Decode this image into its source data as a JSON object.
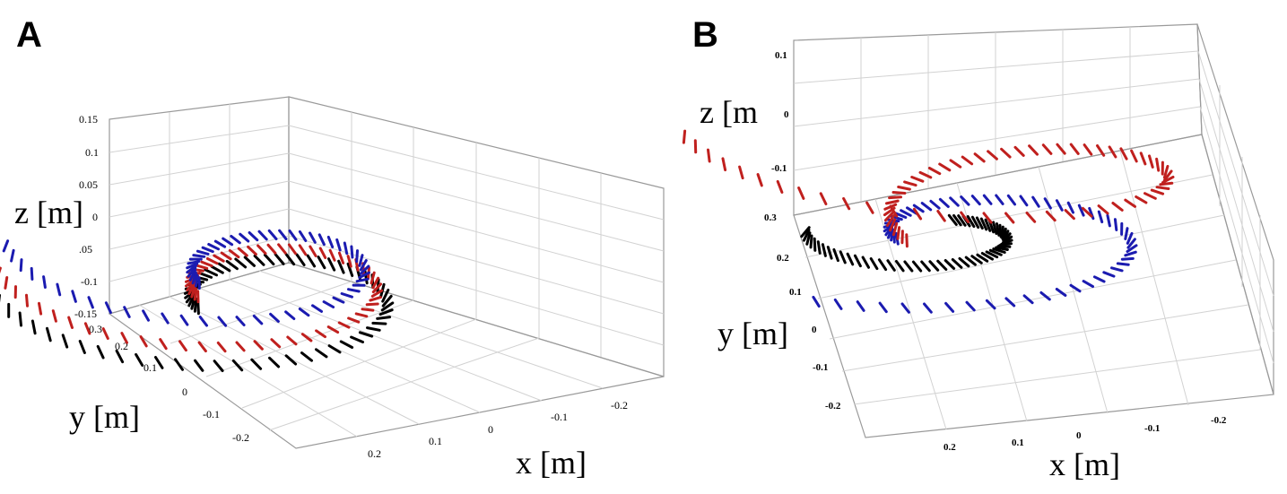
{
  "chart_data": [
    {
      "panel": "A",
      "type": "line",
      "title": "",
      "xlabel": "x [m]",
      "ylabel": "y [m]",
      "zlabel": "z [m]",
      "xticks": [
        "0.2",
        "0.1",
        "0",
        "-0.1",
        "-0.2"
      ],
      "yticks": [
        "0.3",
        "0.2",
        "0.1",
        "0",
        "-0.1",
        "-0.2"
      ],
      "zticks": [
        "0.15",
        "0.1",
        "0.05",
        "0",
        ".05",
        "-0.1",
        "-0.15"
      ],
      "series": [
        {
          "name": "black",
          "color": "#000000"
        },
        {
          "name": "red",
          "color": "#c0201e"
        },
        {
          "name": "blue",
          "color": "#1b1bb0"
        }
      ]
    },
    {
      "panel": "B",
      "type": "line",
      "title": "",
      "xlabel": "x [m]",
      "ylabel": "y [m]",
      "zlabel": "z [m",
      "xticks": [
        "0.2",
        "0.1",
        "0",
        "-0.1",
        "-0.2"
      ],
      "yticks": [
        "0.3",
        "0.2",
        "0.1",
        "0",
        "-0.1",
        "-0.2"
      ],
      "zticks": [
        "0.1",
        "0",
        "-0.1"
      ],
      "series": [
        {
          "name": "black",
          "color": "#000000"
        },
        {
          "name": "blue",
          "color": "#1b1bb0"
        },
        {
          "name": "red",
          "color": "#c0201e"
        }
      ]
    }
  ]
}
